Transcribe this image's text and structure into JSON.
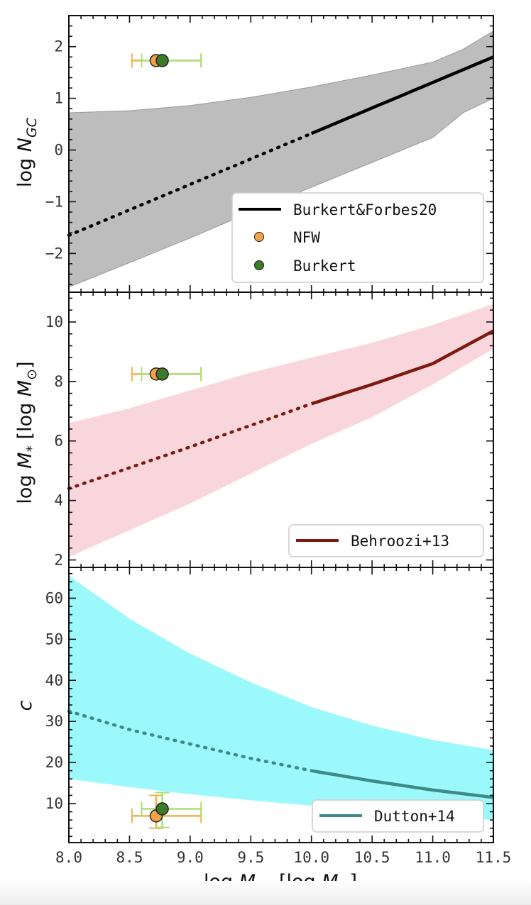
{
  "chart_data": [
    {
      "type": "line",
      "ylabel": "log N_GC",
      "xlim": [
        8.0,
        11.5
      ],
      "ylim": [
        -2.75,
        2.6
      ],
      "yticks": [
        -2,
        -1,
        0,
        1,
        2
      ],
      "ytick_labels": [
        "−2",
        "−1",
        "0",
        "1",
        "2"
      ],
      "series": [
        {
          "name": "Burkert&Forbes20",
          "color": "#000000",
          "x": [
            8.0,
            10.0,
            11.5
          ],
          "y": [
            -1.65,
            0.32,
            1.8
          ],
          "dotted_below_x": 10.0,
          "band_upper": [
            0.72,
            0.76,
            0.86,
            1.02,
            1.22,
            1.45,
            1.7,
            1.95,
            2.3
          ],
          "band_lower": [
            -2.65,
            -2.18,
            -1.7,
            -1.2,
            -0.72,
            -0.24,
            0.24,
            0.72,
            1.0
          ],
          "band_x": [
            8.0,
            8.5,
            9.0,
            9.5,
            10.0,
            10.5,
            11.0,
            11.25,
            11.5
          ],
          "band_color": "#bdbdbd"
        },
        {
          "name": "NFW",
          "color": "#f5a24b",
          "points": [
            {
              "x": 8.72,
              "y": 1.73,
              "xerr": [
                0.2,
                0.37
              ]
            }
          ]
        },
        {
          "name": "Burkert",
          "color": "#3d7a2a",
          "points": [
            {
              "x": 8.77,
              "y": 1.73,
              "xerr": [
                0.17,
                0.32
              ]
            }
          ]
        }
      ]
    },
    {
      "type": "line",
      "ylabel": "log M_* [log M_⊙]",
      "xlim": [
        8.0,
        11.5
      ],
      "ylim": [
        1.75,
        11.0
      ],
      "yticks": [
        2,
        4,
        6,
        8,
        10
      ],
      "ytick_labels": [
        "2",
        "4",
        "6",
        "8",
        "10"
      ],
      "series": [
        {
          "name": "Behroozi+13",
          "color": "#7d1a10",
          "x": [
            8.0,
            9.0,
            10.0,
            10.5,
            11.0,
            11.5
          ],
          "y": [
            4.4,
            5.8,
            7.25,
            7.9,
            8.6,
            9.7
          ],
          "dotted_below_x": 10.0,
          "band_x": [
            8.0,
            8.5,
            9.0,
            9.5,
            10.0,
            10.5,
            11.0,
            11.5
          ],
          "band_upper": [
            6.6,
            7.1,
            7.7,
            8.3,
            8.8,
            9.3,
            9.9,
            10.6
          ],
          "band_lower": [
            2.1,
            3.0,
            3.9,
            4.9,
            5.9,
            6.8,
            7.9,
            9.1
          ],
          "band_color": "#f9d6dc"
        },
        {
          "name": "NFW",
          "color": "#f5a24b",
          "points": [
            {
              "x": 8.72,
              "y": 8.25,
              "xerr": [
                0.2,
                0.37
              ]
            }
          ]
        },
        {
          "name": "Burkert",
          "color": "#3d7a2a",
          "points": [
            {
              "x": 8.77,
              "y": 8.25,
              "xerr": [
                0.17,
                0.32
              ]
            }
          ]
        }
      ]
    },
    {
      "type": "line",
      "xlabel": "log M_vir [log M_⊙]",
      "ylabel": "c",
      "xlim": [
        8.0,
        11.5
      ],
      "ylim": [
        0.5,
        67.5
      ],
      "yticks": [
        10,
        20,
        30,
        40,
        50,
        60
      ],
      "ytick_labels": [
        "10",
        "20",
        "30",
        "40",
        "50",
        "60"
      ],
      "xticks": [
        8.0,
        8.5,
        9.0,
        9.5,
        10.0,
        10.5,
        11.0,
        11.5
      ],
      "xtick_labels": [
        "8.0",
        "8.5",
        "9.0",
        "9.5",
        "10.0",
        "10.5",
        "11.0",
        "11.5"
      ],
      "series": [
        {
          "name": "Dutton+14",
          "color": "#3e8a88",
          "x": [
            8.0,
            8.5,
            9.0,
            9.5,
            10.0,
            10.5,
            11.0,
            11.5
          ],
          "y": [
            32.5,
            28.0,
            24.5,
            21.0,
            18.0,
            15.5,
            13.3,
            11.5
          ],
          "dotted_below_x": 10.0,
          "band_x": [
            8.0,
            8.5,
            9.0,
            9.5,
            10.0,
            10.5,
            11.0,
            11.5
          ],
          "band_upper": [
            65.5,
            55.0,
            46.5,
            39.5,
            33.5,
            29.0,
            25.5,
            23.0
          ],
          "band_lower": [
            16.0,
            14.0,
            12.3,
            10.8,
            9.5,
            8.3,
            7.0,
            6.0
          ],
          "band_color": "#9bf8fb"
        },
        {
          "name": "NFW",
          "color": "#f5a24b",
          "points": [
            {
              "x": 8.72,
              "y": 7.0,
              "xerr": [
                0.2,
                0.37
              ],
              "yerr": [
                3.0,
                5.0
              ]
            }
          ]
        },
        {
          "name": "Burkert",
          "color": "#3d7a2a",
          "points": [
            {
              "x": 8.77,
              "y": 8.7,
              "xerr": [
                0.17,
                0.32
              ],
              "yerr": [
                4.5,
                4.0
              ]
            }
          ]
        }
      ]
    }
  ],
  "legends": {
    "panel1": {
      "entries": [
        "Burkert&Forbes20",
        "NFW",
        "Burkert"
      ]
    },
    "panel2": {
      "entries": [
        "Behroozi+13"
      ]
    },
    "panel3": {
      "entries": [
        "Dutton+14"
      ]
    }
  },
  "colors": {
    "nfw": "#f5a24b",
    "burkert": "#3d7a2a",
    "nfw_err": "#f0b24a",
    "burkert_err": "#a9e07a"
  }
}
